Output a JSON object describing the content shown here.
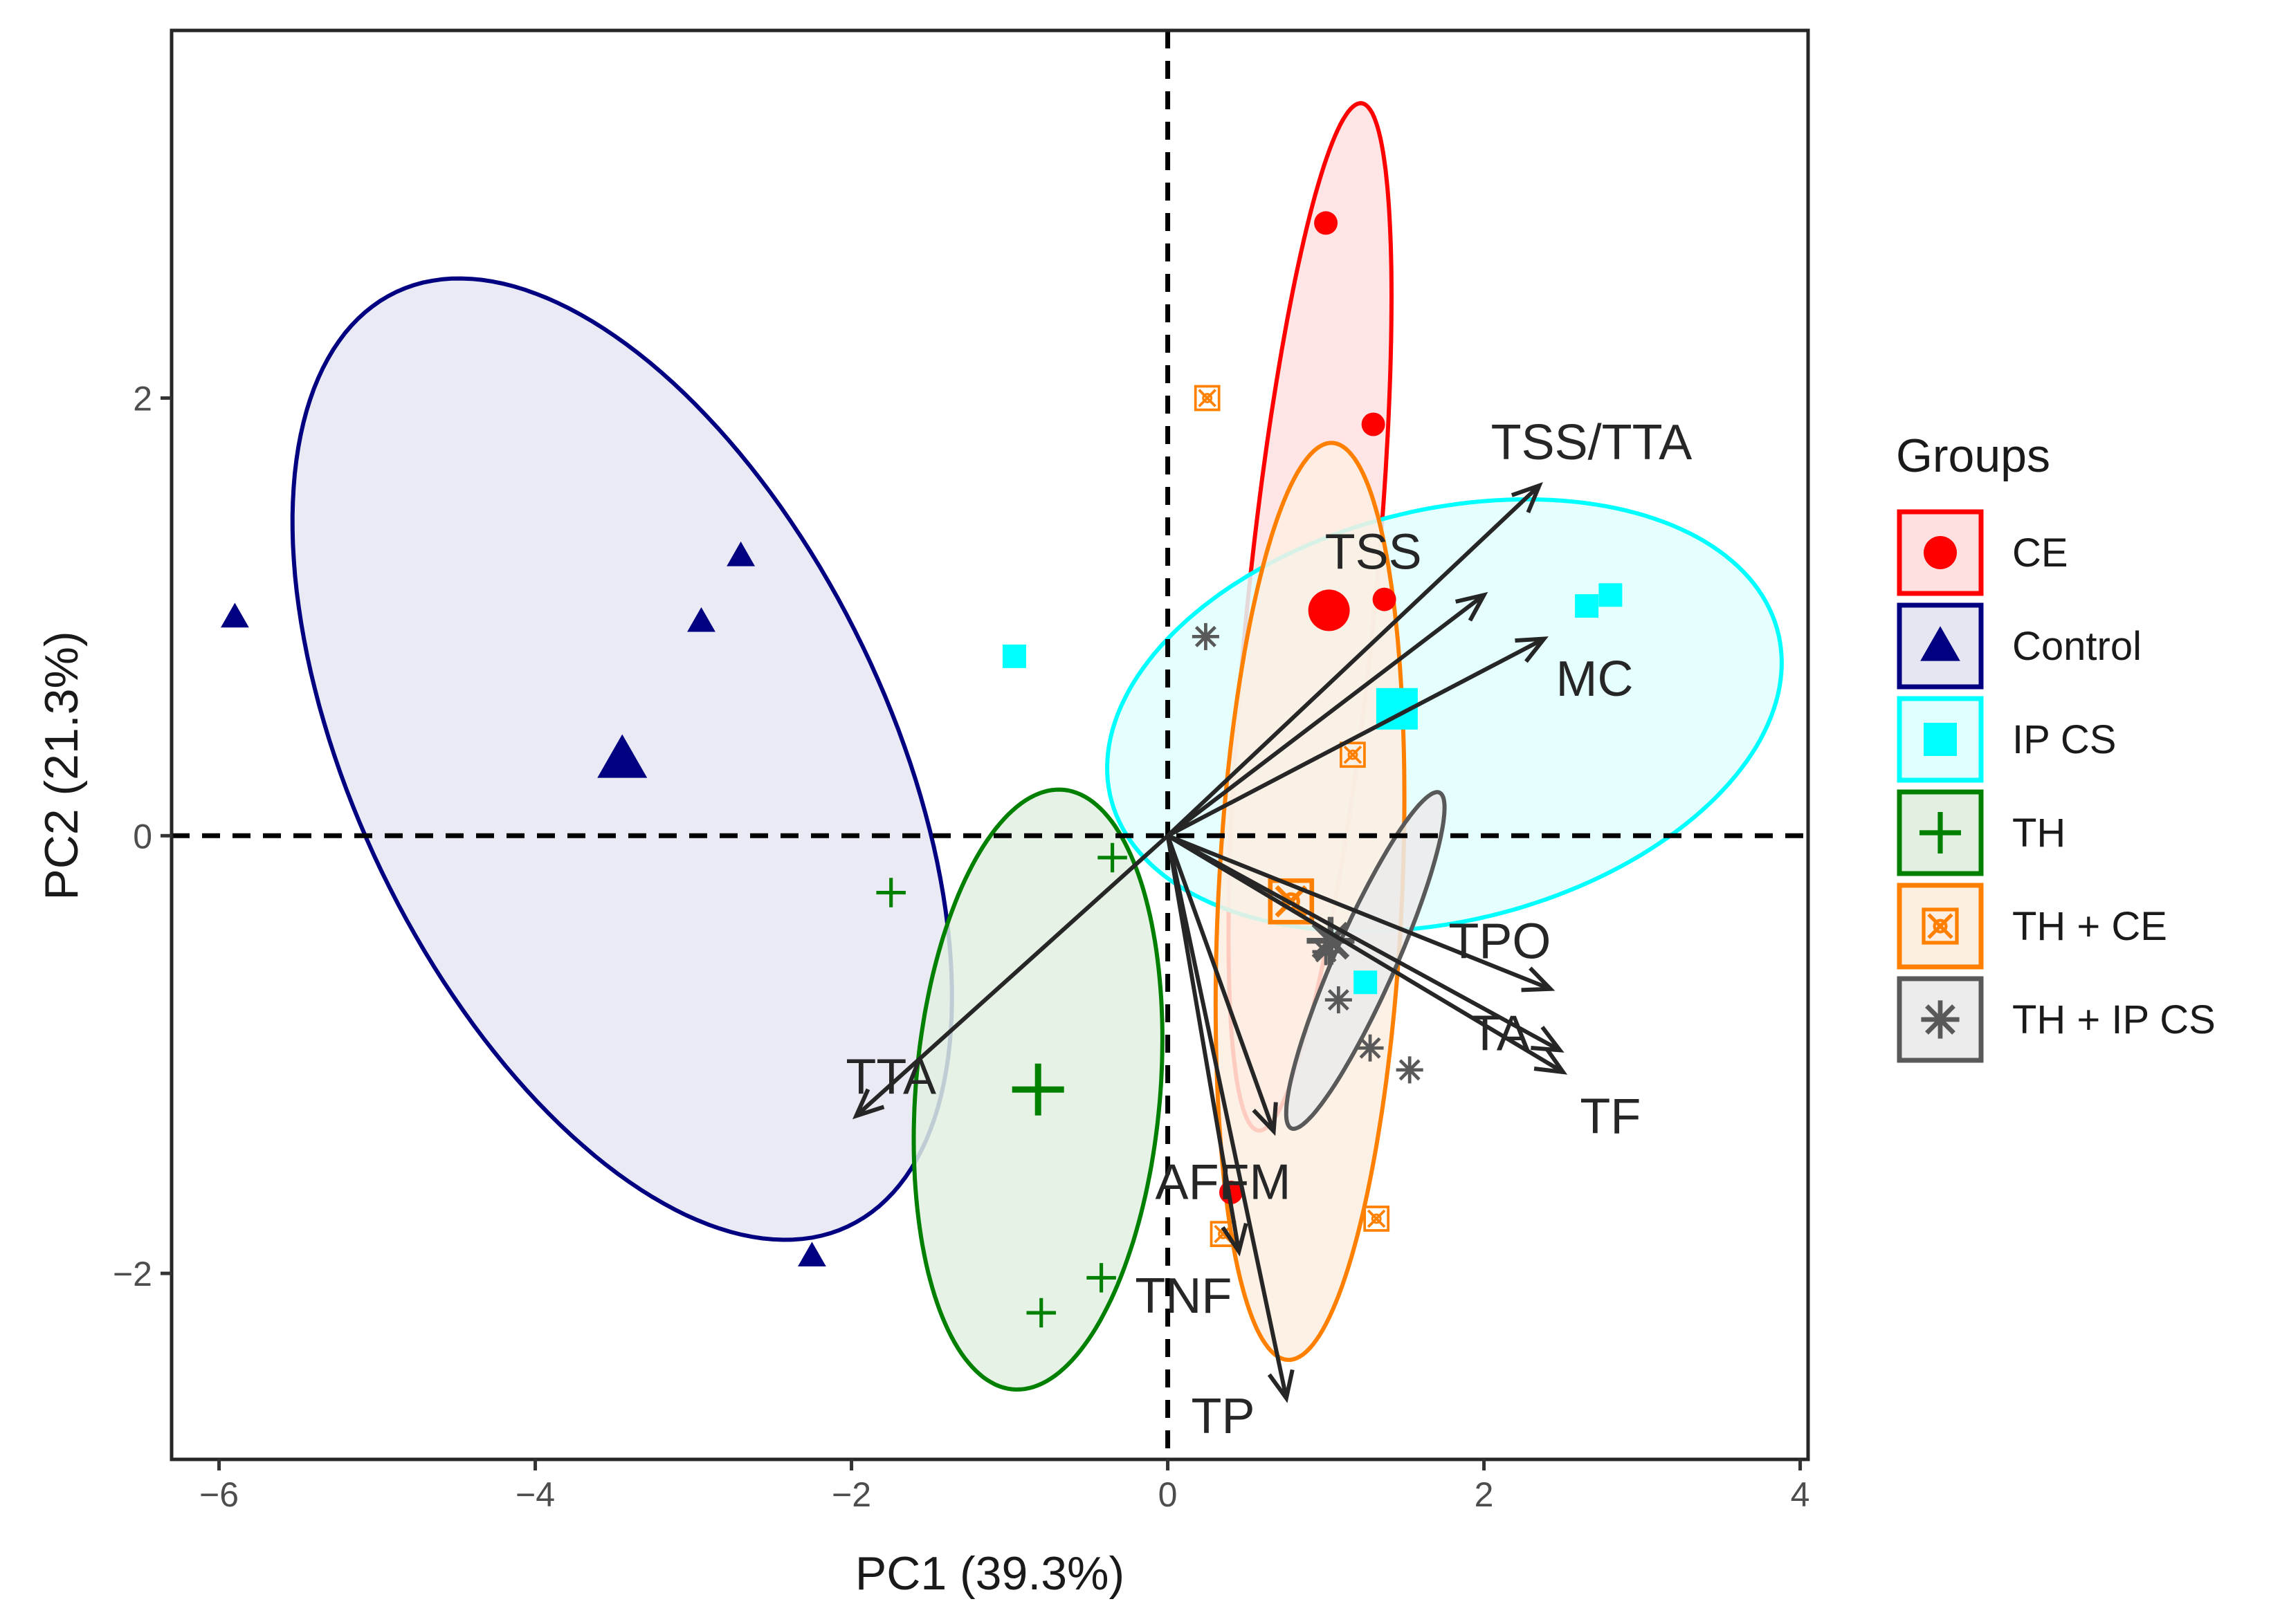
{
  "chart_data": {
    "type": "scatter",
    "subtype": "pca-biplot",
    "xlabel": "PC1 (39.3%)",
    "ylabel": "PC2 (21.3%)",
    "xlim": [
      -6.3,
      4.05
    ],
    "ylim": [
      -2.85,
      3.68
    ],
    "x_ticks": [
      -6,
      -4,
      -2,
      0,
      2,
      4
    ],
    "y_ticks": [
      -2,
      0,
      2
    ],
    "tick_labels_x": [
      "−6",
      "−4",
      "−2",
      "0",
      "2",
      "4"
    ],
    "tick_labels_y": [
      "−2",
      "0",
      "2"
    ],
    "reference_lines": {
      "x": 0,
      "y": 0,
      "style": "dashed"
    },
    "legend": {
      "title": "Groups",
      "position": "right"
    },
    "groups": [
      {
        "name": "CE",
        "color": "#ff0000",
        "fill": "#ffe0e0",
        "marker": "circle",
        "points": [
          [
            1.0,
            2.8
          ],
          [
            1.3,
            1.88
          ],
          [
            1.37,
            1.08
          ],
          [
            0.4,
            -1.63
          ]
        ],
        "centroid": [
          1.02,
          1.03
        ],
        "ellipse": {
          "cx": 0.9,
          "cy": 1.0,
          "rx": 2.37,
          "ry": 0.4,
          "angle_deg": 82.0
        }
      },
      {
        "name": "Control",
        "color": "#000080",
        "fill": "#e6e6f2",
        "marker": "triangle",
        "points": [
          [
            -5.9,
            1.0
          ],
          [
            -2.7,
            1.28
          ],
          [
            -2.95,
            0.98
          ],
          [
            -2.25,
            -1.92
          ]
        ],
        "centroid": [
          -3.45,
          0.35
        ],
        "ellipse": {
          "cx": -3.45,
          "cy": 0.35,
          "rx": 2.62,
          "ry": 1.52,
          "angle_deg": -48.0
        }
      },
      {
        "name": "IP CS",
        "color": "#00ffff",
        "fill": "#e0ffff",
        "marker": "square",
        "points": [
          [
            -0.97,
            0.82
          ],
          [
            2.65,
            1.05
          ],
          [
            2.8,
            1.1
          ],
          [
            1.5,
            0.55
          ],
          [
            1.25,
            -0.67
          ]
        ],
        "centroid": [
          1.45,
          0.58
        ],
        "ellipse": {
          "cx": 1.75,
          "cy": 0.55,
          "rx": 2.15,
          "ry": 0.95,
          "angle_deg": 8.0
        }
      },
      {
        "name": "TH",
        "color": "#008000",
        "fill": "#e2f0e2",
        "marker": "plus",
        "points": [
          [
            -1.75,
            -0.26
          ],
          [
            -0.35,
            -0.1
          ],
          [
            -0.42,
            -2.02
          ],
          [
            -0.8,
            -2.18
          ]
        ],
        "centroid": [
          -0.82,
          -1.16
        ],
        "ellipse": {
          "cx": -0.82,
          "cy": -1.16,
          "rx": 1.38,
          "ry": 0.77,
          "angle_deg": 82.0
        }
      },
      {
        "name": "TH + CE",
        "color": "#ff8000",
        "fill": "#fdeee2",
        "marker": "square-cross",
        "points": [
          [
            0.25,
            2.0
          ],
          [
            1.17,
            0.37
          ],
          [
            0.35,
            -1.82
          ],
          [
            1.32,
            -1.75
          ]
        ],
        "centroid": [
          0.78,
          -0.3
        ],
        "ellipse": {
          "cx": 0.9,
          "cy": -0.3,
          "rx": 2.1,
          "ry": 0.58,
          "angle_deg": 86.0
        }
      },
      {
        "name": "TH + IP CS",
        "color": "#595959",
        "fill": "#ebebeb",
        "marker": "star",
        "points": [
          [
            0.24,
            0.91
          ],
          [
            1.08,
            -0.75
          ],
          [
            1.28,
            -0.97
          ],
          [
            1.53,
            -1.07
          ],
          [
            1.0,
            -0.53
          ]
        ],
        "centroid": [
          1.03,
          -0.48
        ],
        "ellipse": {
          "cx": 1.25,
          "cy": -0.57,
          "rx": 0.9,
          "ry": 0.18,
          "angle_deg": 58.0
        }
      }
    ],
    "loadings": [
      {
        "name": "TSS/TTA",
        "x": 2.35,
        "y": 1.6,
        "label_x": 2.68,
        "label_y": 1.78
      },
      {
        "name": "TSS",
        "x": 2.0,
        "y": 1.1,
        "label_x": 1.3,
        "label_y": 1.28
      },
      {
        "name": "MC",
        "x": 2.38,
        "y": 0.9,
        "label_x": 2.7,
        "label_y": 0.7
      },
      {
        "name": "TPO",
        "x": 2.42,
        "y": -0.7,
        "label_x": 2.1,
        "label_y": -0.5
      },
      {
        "name": "TA",
        "x": 2.48,
        "y": -0.98,
        "label_x": 2.1,
        "label_y": -0.92
      },
      {
        "name": "TF",
        "x": 2.5,
        "y": -1.08,
        "label_x": 2.8,
        "label_y": -1.3
      },
      {
        "name": "TTA",
        "x": -1.97,
        "y": -1.28,
        "label_x": -1.75,
        "label_y": -1.12
      },
      {
        "name": "AFFM",
        "x": 0.67,
        "y": -1.35,
        "label_x": 0.35,
        "label_y": -1.6
      },
      {
        "name": "TNF",
        "x": 0.45,
        "y": -1.9,
        "label_x": 0.1,
        "label_y": -2.12
      },
      {
        "name": "TP",
        "x": 0.75,
        "y": -2.57,
        "label_x": 0.35,
        "label_y": -2.67
      }
    ]
  }
}
